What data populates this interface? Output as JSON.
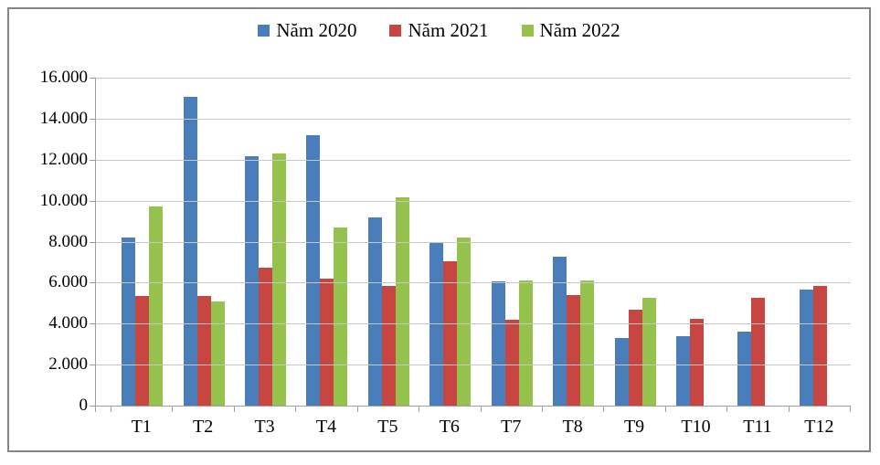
{
  "chart_data": {
    "type": "bar",
    "title": "",
    "categories": [
      "T1",
      "T2",
      "T3",
      "T4",
      "T5",
      "T6",
      "T7",
      "T8",
      "T9",
      "T10",
      "T11",
      "T12"
    ],
    "series": [
      {
        "name": "Năm 2020",
        "color": "#4A7EBB",
        "values": [
          8200,
          15050,
          12150,
          13200,
          9200,
          8000,
          6050,
          7250,
          3300,
          3400,
          3600,
          5650
        ]
      },
      {
        "name": "Năm 2021",
        "color": "#C84642",
        "values": [
          5350,
          5350,
          6750,
          6200,
          5850,
          7050,
          4200,
          5400,
          4700,
          4250,
          5250,
          5850
        ]
      },
      {
        "name": "Năm 2022",
        "color": "#95C24D",
        "values": [
          9700,
          5100,
          12300,
          8700,
          10150,
          8200,
          6100,
          6100,
          5250,
          null,
          null,
          null
        ]
      }
    ],
    "ylim": [
      0,
      16000
    ],
    "ytick_step": 2000,
    "ytick_labels": [
      "0",
      "2.000",
      "4.000",
      "6.000",
      "8.000",
      "10.000",
      "12.000",
      "14.000",
      "16.000"
    ],
    "grid": true,
    "legend_position": "top"
  },
  "style": {
    "grid_color": "#c6c6c6",
    "axis_color": "#9e9e9e",
    "frame_border_color": "#858585",
    "text_color": "#000000",
    "background": "#ffffff"
  }
}
